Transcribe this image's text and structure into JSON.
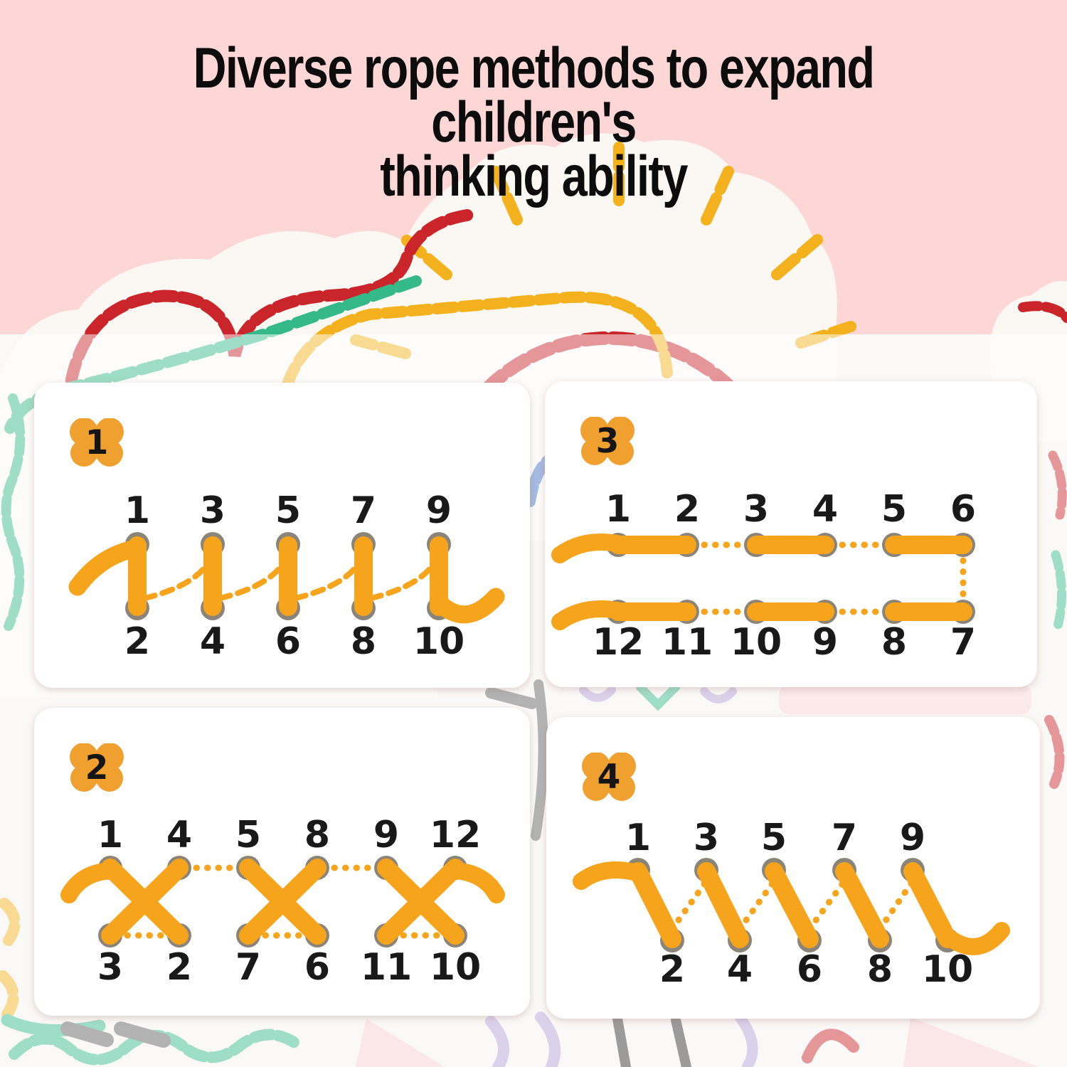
{
  "title": {
    "line1": "Diverse rope methods to expand children's",
    "line2": "thinking ability"
  },
  "colors": {
    "background_pink": "#fdd6d6",
    "card_white": "#ffffff",
    "rope_orange": "#f5a41c",
    "badge_orange": "#efa02f",
    "dot_gray": "#8b8478",
    "number_black": "#191919",
    "stitch_red": "#c9252b",
    "stitch_green": "#35b98b",
    "stitch_blue": "#4473c5",
    "stitch_yellow": "#f3b21d",
    "stitch_gray": "#606060",
    "stitch_purple": "#b59fd6",
    "felt_white": "#fbf8f4"
  },
  "background": {
    "motifs": [
      "stitched-sun-with-rays",
      "stitched-cloud",
      "stitched-felt-pieces"
    ]
  },
  "cards": [
    {
      "badge": "1",
      "pattern": "vertical-bars",
      "top_labels": [
        "1",
        "3",
        "5",
        "7",
        "9"
      ],
      "bottom_labels": [
        "2",
        "4",
        "6",
        "8",
        "10"
      ]
    },
    {
      "badge": "3",
      "pattern": "horizontal-rows",
      "top_labels": [
        "1",
        "2",
        "3",
        "4",
        "5",
        "6"
      ],
      "bottom_labels": [
        "12",
        "11",
        "10",
        "9",
        "8",
        "7"
      ]
    },
    {
      "badge": "2",
      "pattern": "cross-stitch",
      "top_labels": [
        "1",
        "4",
        "5",
        "8",
        "9",
        "12"
      ],
      "bottom_labels": [
        "3",
        "2",
        "7",
        "6",
        "11",
        "10"
      ]
    },
    {
      "badge": "4",
      "pattern": "zigzag",
      "top_labels": [
        "1",
        "3",
        "5",
        "7",
        "9"
      ],
      "bottom_labels": [
        "2",
        "4",
        "6",
        "8",
        "10"
      ]
    }
  ]
}
